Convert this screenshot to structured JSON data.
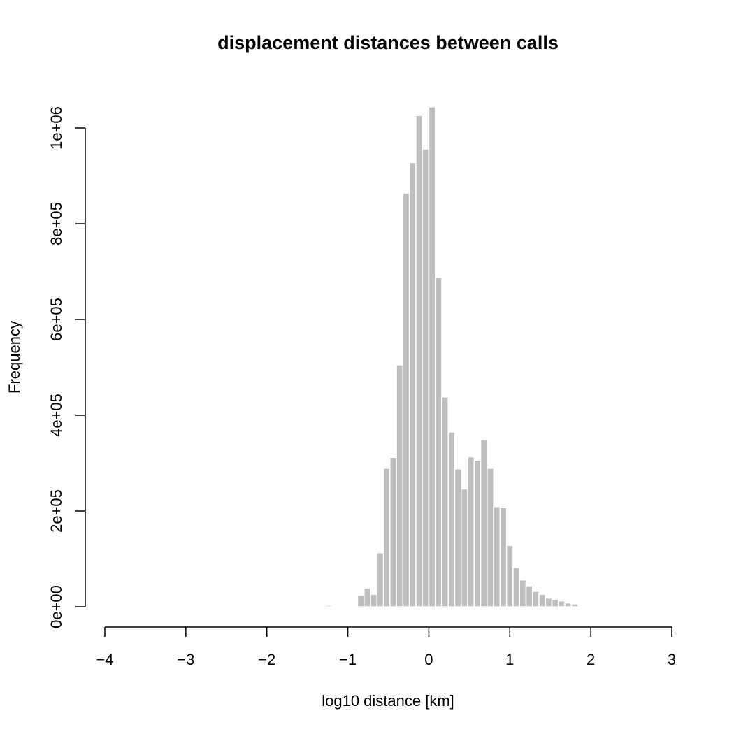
{
  "chart_data": {
    "type": "bar",
    "title": "displacement distances between calls",
    "xlabel": "log10 distance [km]",
    "ylabel": "Frequency",
    "x_ticks": [
      -4,
      -3,
      -2,
      -1,
      0,
      1,
      2,
      3
    ],
    "x_tick_labels": [
      "−4",
      "−3",
      "−2",
      "−1",
      "0",
      "1",
      "2",
      "3"
    ],
    "y_ticks": [
      0,
      200000,
      400000,
      600000,
      800000,
      1000000
    ],
    "y_tick_labels": [
      "0e+00",
      "2e+05",
      "4e+05",
      "6e+05",
      "8e+05",
      "1e+06"
    ],
    "xlim": [
      -4,
      3
    ],
    "ylim": [
      0,
      1000000
    ],
    "bin_width": 0.08,
    "grid": false,
    "legend": "none",
    "bar_color": "#bebebe",
    "bins": [
      {
        "x0": -4.0,
        "x1": -3.92,
        "value": 2000
      },
      {
        "x0": -3.68,
        "x1": -3.6,
        "value": 500
      },
      {
        "x0": -2.0,
        "x1": -1.92,
        "value": 500
      },
      {
        "x0": -1.28,
        "x1": -1.2,
        "value": 3000
      },
      {
        "x0": -1.2,
        "x1": -1.12,
        "value": 1500
      },
      {
        "x0": -0.88,
        "x1": -0.8,
        "value": 24000
      },
      {
        "x0": -0.8,
        "x1": -0.72,
        "value": 39000
      },
      {
        "x0": -0.72,
        "x1": -0.64,
        "value": 26000
      },
      {
        "x0": -0.64,
        "x1": -0.56,
        "value": 113000
      },
      {
        "x0": -0.56,
        "x1": -0.48,
        "value": 289000
      },
      {
        "x0": -0.48,
        "x1": -0.4,
        "value": 312000
      },
      {
        "x0": -0.4,
        "x1": -0.32,
        "value": 505000
      },
      {
        "x0": -0.32,
        "x1": -0.24,
        "value": 864000
      },
      {
        "x0": -0.24,
        "x1": -0.16,
        "value": 928000
      },
      {
        "x0": -0.16,
        "x1": -0.08,
        "value": 1026000
      },
      {
        "x0": -0.08,
        "x1": 0.0,
        "value": 956000
      },
      {
        "x0": 0.0,
        "x1": 0.08,
        "value": 1044000
      },
      {
        "x0": 0.08,
        "x1": 0.16,
        "value": 688000
      },
      {
        "x0": 0.16,
        "x1": 0.24,
        "value": 438000
      },
      {
        "x0": 0.24,
        "x1": 0.32,
        "value": 365000
      },
      {
        "x0": 0.32,
        "x1": 0.4,
        "value": 288000
      },
      {
        "x0": 0.4,
        "x1": 0.48,
        "value": 246000
      },
      {
        "x0": 0.48,
        "x1": 0.56,
        "value": 313000
      },
      {
        "x0": 0.56,
        "x1": 0.64,
        "value": 306000
      },
      {
        "x0": 0.64,
        "x1": 0.72,
        "value": 350000
      },
      {
        "x0": 0.72,
        "x1": 0.8,
        "value": 289000
      },
      {
        "x0": 0.8,
        "x1": 0.88,
        "value": 209000
      },
      {
        "x0": 0.88,
        "x1": 0.96,
        "value": 207000
      },
      {
        "x0": 0.96,
        "x1": 1.04,
        "value": 128000
      },
      {
        "x0": 1.04,
        "x1": 1.12,
        "value": 82000
      },
      {
        "x0": 1.12,
        "x1": 1.2,
        "value": 56000
      },
      {
        "x0": 1.2,
        "x1": 1.28,
        "value": 44000
      },
      {
        "x0": 1.28,
        "x1": 1.36,
        "value": 32000
      },
      {
        "x0": 1.36,
        "x1": 1.44,
        "value": 26000
      },
      {
        "x0": 1.44,
        "x1": 1.52,
        "value": 18000
      },
      {
        "x0": 1.52,
        "x1": 1.6,
        "value": 15000
      },
      {
        "x0": 1.6,
        "x1": 1.68,
        "value": 12000
      },
      {
        "x0": 1.68,
        "x1": 1.76,
        "value": 8000
      },
      {
        "x0": 1.76,
        "x1": 1.84,
        "value": 6000
      }
    ]
  }
}
